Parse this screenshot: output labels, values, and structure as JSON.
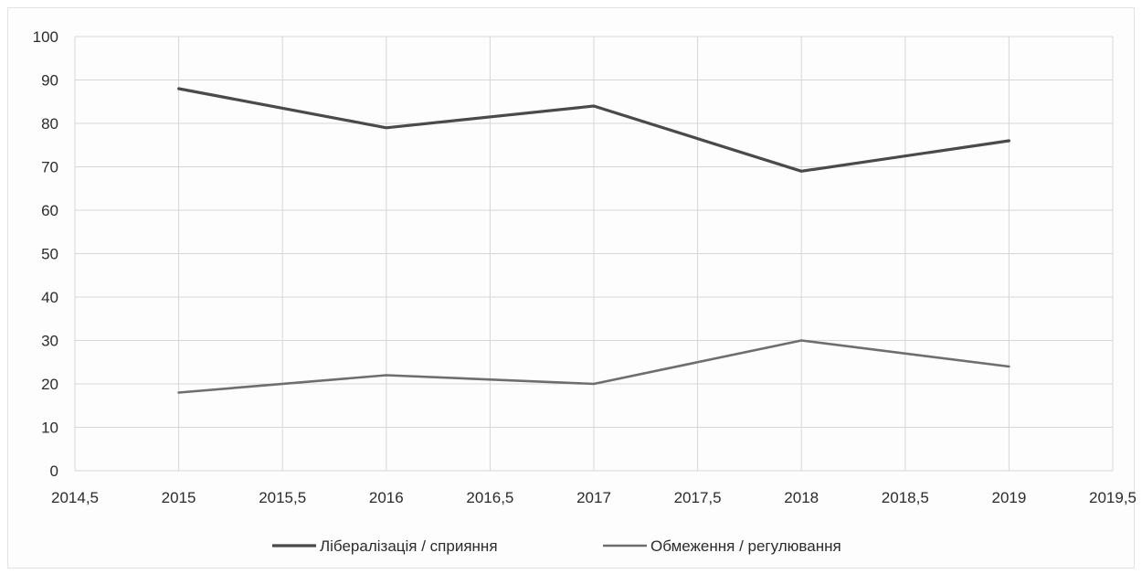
{
  "chart_data": {
    "type": "scatter",
    "mode": "lines",
    "x_ticks": [
      "2014,5",
      "2015",
      "2015,5",
      "2016",
      "2016,5",
      "2017",
      "2017,5",
      "2018",
      "2018,5",
      "2019",
      "2019,5"
    ],
    "y_ticks": [
      "0",
      "10",
      "20",
      "30",
      "40",
      "50",
      "60",
      "70",
      "80",
      "90",
      "100"
    ],
    "xlim": [
      2014.5,
      2019.5
    ],
    "ylim": [
      0,
      100
    ],
    "grid": true,
    "legend_position": "bottom",
    "series": [
      {
        "name": "Лібералізація / сприяння",
        "color": "#4a4a4a",
        "x": [
          2015,
          2016,
          2017,
          2018,
          2019
        ],
        "y": [
          88,
          79,
          84,
          69,
          76
        ]
      },
      {
        "name": "Обмеження / регулювання",
        "color": "#6e6e6e",
        "x": [
          2015,
          2016,
          2017,
          2018,
          2019
        ],
        "y": [
          18,
          22,
          20,
          30,
          24
        ]
      }
    ]
  }
}
